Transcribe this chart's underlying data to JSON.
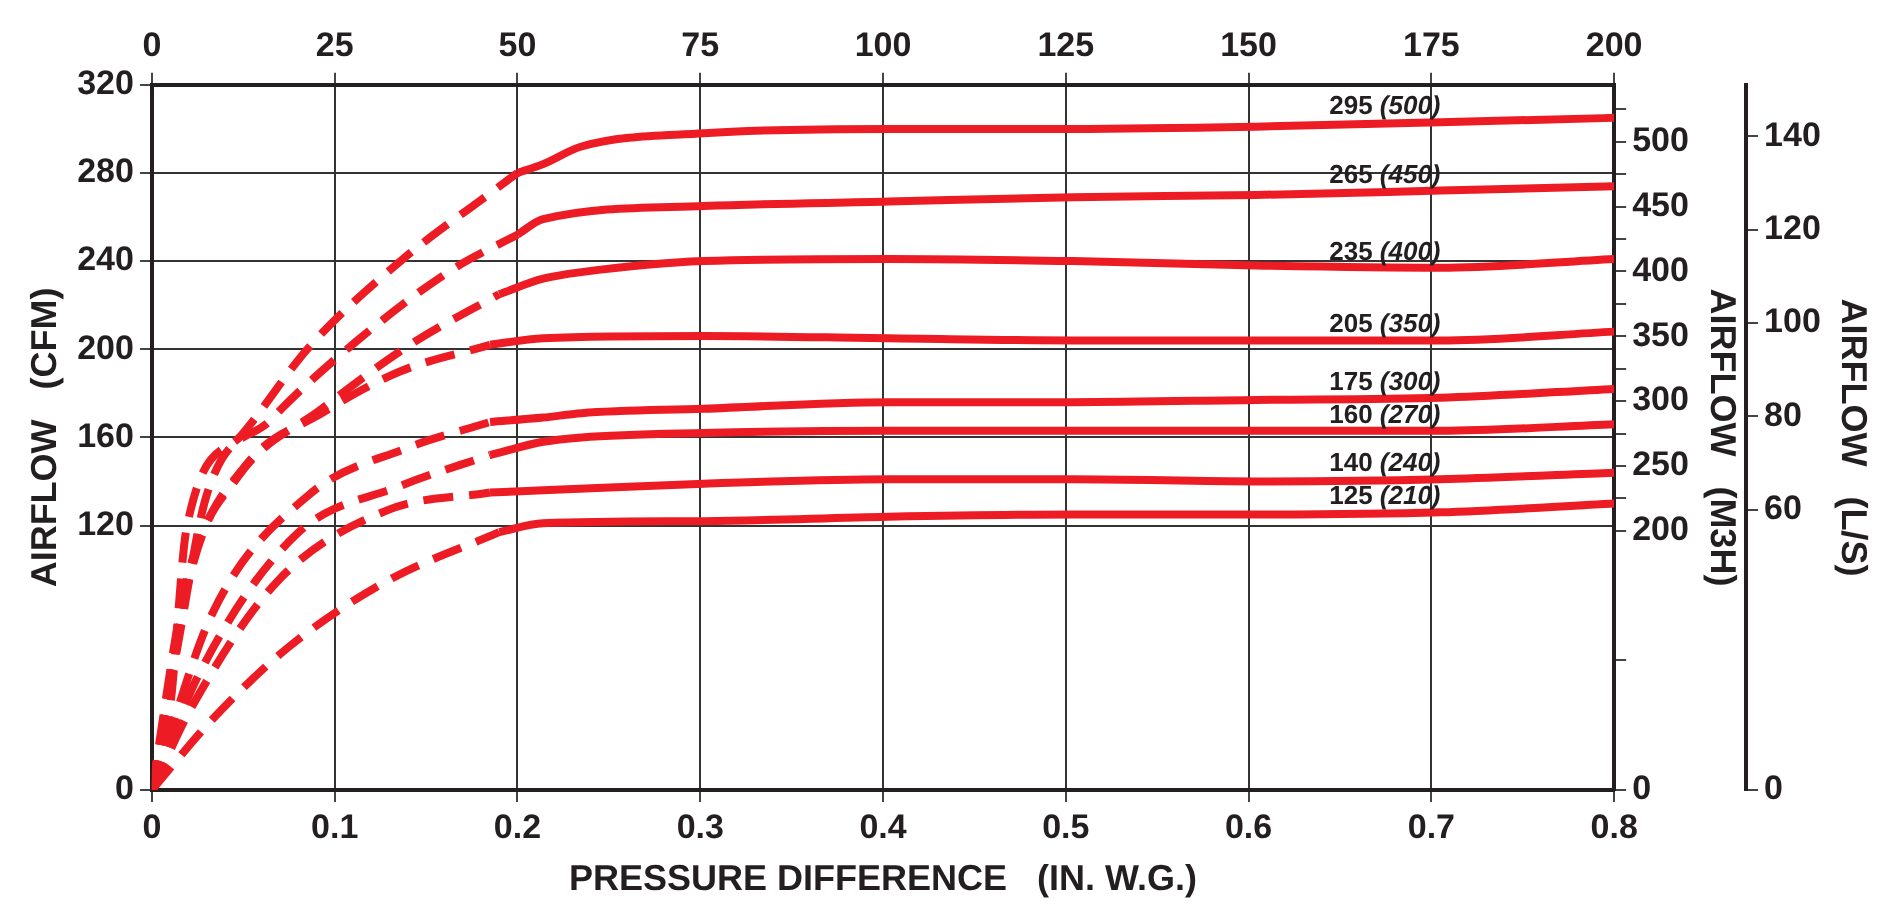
{
  "chart_data": {
    "type": "line",
    "xlabel": "PRESSURE DIFFERENCE   (IN. W.G.)",
    "ylabel": "AIRFLOW   (CFM)",
    "y2label": "AIRFLOW   (M3H)",
    "y3label": "AIRFLOW   (L/S)",
    "xlim": [
      0,
      0.8
    ],
    "xticks": [
      0,
      0.1,
      0.2,
      0.3,
      0.4,
      0.5,
      0.6,
      0.7,
      0.8
    ],
    "x2lim": [
      0,
      200
    ],
    "x2ticks": [
      0,
      25,
      50,
      75,
      100,
      125,
      150,
      175,
      200
    ],
    "ylim": [
      0,
      320
    ],
    "yticks": [
      0,
      120,
      160,
      200,
      240,
      280,
      320
    ],
    "y2lim": [
      0,
      544
    ],
    "y2ticks": [
      0,
      {
        "value": 100,
        "label": null
      },
      200,
      {
        "value": 225,
        "label": null
      },
      250,
      {
        "value": 275,
        "label": null
      },
      300,
      {
        "value": 325,
        "label": null
      },
      350,
      {
        "value": 375,
        "label": null
      },
      400,
      {
        "value": 425,
        "label": null
      },
      450,
      {
        "value": 475,
        "label": null
      },
      500,
      {
        "value": 525,
        "label": null
      }
    ],
    "y3lim": [
      0,
      151
    ],
    "y3ticks": [
      0,
      60,
      80,
      100,
      120,
      140
    ],
    "grid": true,
    "legend": false,
    "series": [
      {
        "color": "#ed1c24",
        "line_style": "dashed",
        "x": [
          0,
          0.01,
          0.019,
          0.049,
          0.086,
          0.136,
          0.187,
          0.2
        ],
        "values": [
          0,
          38,
          119,
          161,
          201,
          240,
          272,
          280
        ]
      },
      {
        "name": "295 (500)",
        "color": "#ed1c24",
        "line_style": "solid",
        "x": [
          0.2,
          0.214,
          0.235,
          0.302,
          0.403,
          0.504,
          0.604,
          0.705,
          0.8
        ],
        "values": [
          280,
          284,
          292,
          298,
          300,
          300,
          301,
          303,
          305
        ]
      },
      {
        "color": "#ed1c24",
        "line_style": "dashed",
        "x": [
          0,
          0.014,
          0.03,
          0.065,
          0.111,
          0.164,
          0.2
        ],
        "values": [
          0,
          65,
          134,
          168,
          203,
          236,
          252
        ]
      },
      {
        "name": "265 (450)",
        "color": "#ed1c24",
        "line_style": "solid",
        "x": [
          0.2,
          0.214,
          0.302,
          0.403,
          0.504,
          0.604,
          0.705,
          0.8
        ],
        "values": [
          252,
          259,
          265,
          267,
          269,
          270,
          272,
          274
        ]
      },
      {
        "color": "#ed1c24",
        "line_style": "dashed",
        "x": [
          0,
          0.019,
          0.047,
          0.093,
          0.143,
          0.19
        ],
        "values": [
          0,
          95,
          142,
          173,
          203,
          225
        ]
      },
      {
        "name": "235 (400)",
        "color": "#ed1c24",
        "line_style": "solid",
        "x": [
          0.19,
          0.214,
          0.235,
          0.302,
          0.403,
          0.504,
          0.604,
          0.705,
          0.8
        ],
        "values": [
          225,
          232,
          235,
          240,
          241,
          240,
          238,
          237,
          241
        ]
      },
      {
        "color": "#ed1c24",
        "line_style": "dashed",
        "x": [
          0,
          0.022,
          0.051,
          0.093,
          0.136,
          0.185
        ],
        "values": [
          0,
          101,
          147,
          171,
          190,
          202
        ]
      },
      {
        "name": "205 (350)",
        "color": "#ed1c24",
        "line_style": "solid",
        "x": [
          0.185,
          0.214,
          0.302,
          0.403,
          0.504,
          0.604,
          0.705,
          0.8
        ],
        "values": [
          202,
          205,
          206,
          205,
          204,
          204,
          204,
          208
        ]
      },
      {
        "color": "#ed1c24",
        "line_style": "dashed",
        "x": [
          0,
          0.033,
          0.086,
          0.139,
          0.185
        ],
        "values": [
          0,
          80,
          134,
          155,
          167
        ]
      },
      {
        "name": "175 (300)",
        "color": "#ed1c24",
        "line_style": "solid",
        "x": [
          0.185,
          0.214,
          0.235,
          0.302,
          0.403,
          0.504,
          0.604,
          0.705,
          0.8
        ],
        "values": [
          167,
          169,
          171,
          173,
          176,
          176,
          177,
          178,
          182
        ]
      },
      {
        "color": "#ed1c24",
        "line_style": "dashed",
        "x": [
          0,
          0.026,
          0.079,
          0.136,
          0.185
        ],
        "values": [
          0,
          53,
          116,
          138,
          152
        ]
      },
      {
        "name": "160 (270)",
        "color": "#ed1c24",
        "line_style": "solid",
        "x": [
          0.185,
          0.214,
          0.235,
          0.302,
          0.403,
          0.504,
          0.604,
          0.705,
          0.8
        ],
        "values": [
          152,
          158,
          160,
          162,
          163,
          163,
          163,
          163,
          166
        ]
      },
      {
        "color": "#ed1c24",
        "line_style": "dashed",
        "x": [
          0,
          0.022,
          0.069,
          0.129,
          0.185
        ],
        "values": [
          0,
          38,
          95,
          127,
          135
        ]
      },
      {
        "name": "140 (240)",
        "color": "#ed1c24",
        "line_style": "solid",
        "x": [
          0.185,
          0.214,
          0.302,
          0.403,
          0.504,
          0.604,
          0.705,
          0.8
        ],
        "values": [
          135,
          136,
          139,
          141,
          141,
          140,
          141,
          144
        ]
      },
      {
        "color": "#ed1c24",
        "line_style": "dashed",
        "x": [
          0,
          0.033,
          0.075,
          0.129,
          0.19
        ],
        "values": [
          0,
          32,
          65,
          95,
          117
        ]
      },
      {
        "name": "125 (210)",
        "color": "#ed1c24",
        "line_style": "solid",
        "x": [
          0.19,
          0.214,
          0.302,
          0.403,
          0.504,
          0.604,
          0.705,
          0.8
        ],
        "values": [
          117,
          121,
          122,
          124,
          125,
          125,
          126,
          130
        ]
      }
    ]
  }
}
